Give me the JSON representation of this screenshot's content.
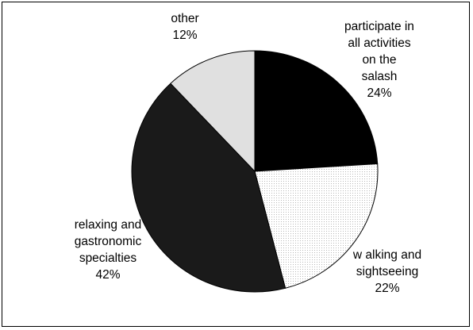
{
  "chart_data": {
    "type": "pie",
    "title": "",
    "start_angle_deg": 0,
    "direction": "clockwise",
    "slices": [
      {
        "label_lines": [
          "participate in",
          "all activities",
          "on the",
          "salash"
        ],
        "percent_label": "24%",
        "value": 24,
        "color": "#000000",
        "pattern": "solid"
      },
      {
        "label_lines": [
          "w alking and",
          "sightseeing"
        ],
        "percent_label": "22%",
        "value": 22,
        "color": "#ffffff",
        "pattern": "fine-dots"
      },
      {
        "label_lines": [
          "relaxing and",
          "gastronomic",
          "specialties"
        ],
        "percent_label": "42%",
        "value": 42,
        "color": "#1a1a1a",
        "pattern": "solid"
      },
      {
        "label_lines": [
          "other"
        ],
        "percent_label": "12%",
        "value": 12,
        "color": "#e0e0e0",
        "pattern": "solid"
      }
    ]
  }
}
